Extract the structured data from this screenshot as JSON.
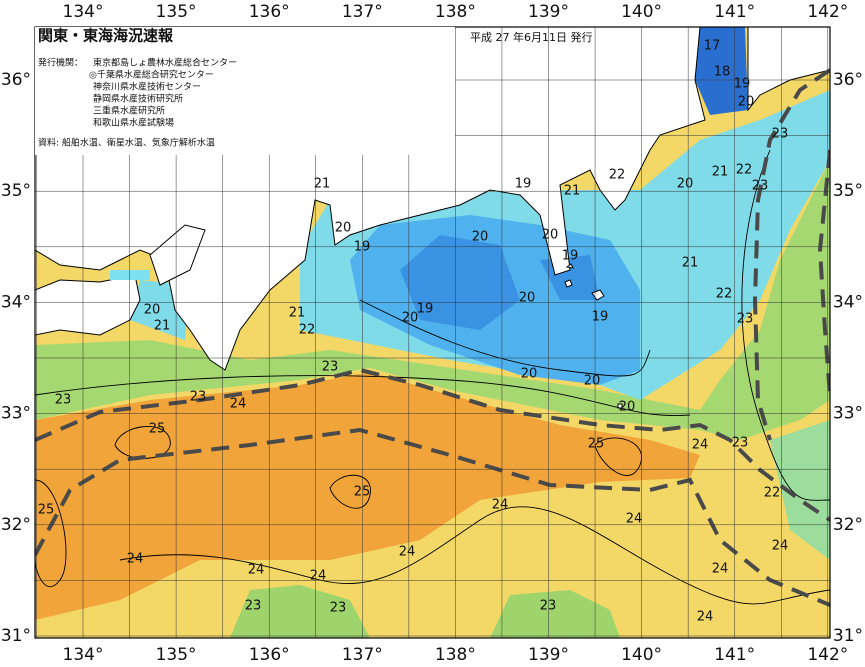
{
  "header": {
    "title": "関東・東海海況速報",
    "issue_date": "平成 27 年6月11日 発行",
    "issuers_label": "発行機関：",
    "issuers": [
      "東京都島しょ農林水産総合センター",
      "◎千葉県水産総合研究センター",
      "神奈川県水産技術センター",
      "静岡県水産技術研究所",
      "三重県水産研究所",
      "和歌山県水産試験場"
    ],
    "sources": "資料: 船舶水温、衛星水温、気象庁解析水温"
  },
  "axes": {
    "longitude_labels": [
      "134°",
      "135°",
      "136°",
      "137°",
      "138°",
      "139°",
      "140°",
      "141°",
      "142°"
    ],
    "latitude_labels": [
      "36°",
      "35°",
      "34°",
      "33°",
      "32°",
      "31°"
    ]
  },
  "isotherm_labels": [
    "17",
    "18",
    "19",
    "20",
    "23",
    "20",
    "21",
    "22",
    "23",
    "21",
    "19",
    "21",
    "22",
    "20",
    "19",
    "20",
    "20",
    "19",
    "21",
    "22",
    "20",
    "21",
    "19",
    "20",
    "20",
    "19",
    "23",
    "21",
    "22",
    "23",
    "20",
    "20",
    "20",
    "23",
    "23",
    "24",
    "25",
    "25",
    "24",
    "23",
    "25",
    "22",
    "25",
    "24",
    "24",
    "24",
    "24",
    "24",
    "24",
    "24",
    "24",
    "23",
    "23",
    "23",
    "24"
  ]
}
